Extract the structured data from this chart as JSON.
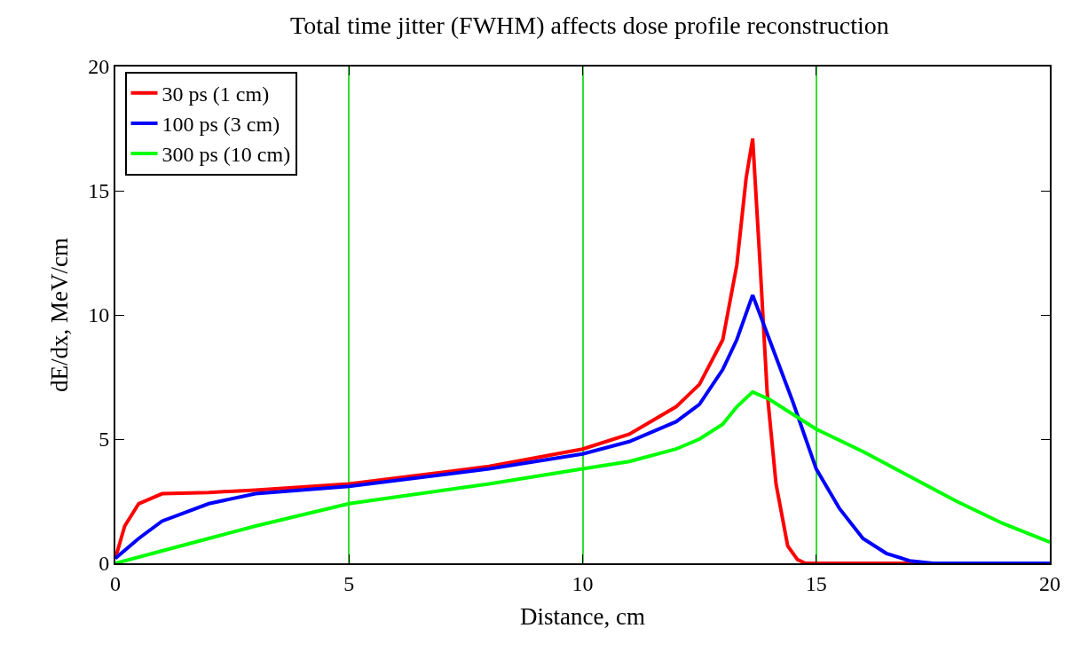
{
  "chart_data": {
    "type": "line",
    "title": "Total time jitter (FWHM) affects dose profile reconstruction",
    "xlabel": "Distance, cm",
    "ylabel": "dE/dx, MeV/cm",
    "xlim": [
      0,
      20
    ],
    "ylim": [
      0,
      20
    ],
    "xticks": [
      0,
      5,
      10,
      15,
      20
    ],
    "yticks": [
      0,
      5,
      10,
      15,
      20
    ],
    "grid": "x",
    "legend": "top left",
    "marker": "none",
    "line_style": "solid",
    "series": [
      {
        "name": "30 ps (1 cm)",
        "color": "#ff0000",
        "x": [
          0,
          0.2,
          0.5,
          1,
          2,
          3,
          5,
          8,
          10,
          11,
          12,
          12.5,
          13,
          13.3,
          13.5,
          13.64,
          13.8,
          13.95,
          14.14,
          14.39,
          14.6,
          14.77,
          16,
          20
        ],
        "values": [
          0.2,
          1.5,
          2.4,
          2.8,
          2.85,
          2.95,
          3.2,
          3.9,
          4.6,
          5.2,
          6.3,
          7.2,
          9,
          12,
          15.5,
          17.1,
          12,
          6.9,
          3.2,
          0.7,
          0.15,
          0,
          0,
          0
        ]
      },
      {
        "name": "100 ps (3 cm)",
        "color": "#0000ff",
        "x": [
          0,
          0.5,
          1,
          2,
          3,
          5,
          8,
          10,
          11,
          12,
          12.5,
          13,
          13.3,
          13.64,
          14,
          14.5,
          15,
          15.5,
          16,
          16.5,
          17,
          17.5,
          20
        ],
        "values": [
          0.2,
          1.0,
          1.7,
          2.4,
          2.8,
          3.1,
          3.8,
          4.4,
          4.9,
          5.7,
          6.4,
          7.8,
          9,
          10.8,
          9,
          6.5,
          3.8,
          2.2,
          1.0,
          0.4,
          0.1,
          0,
          0
        ]
      },
      {
        "name": "300 ps (10 cm)",
        "color": "#00ff00",
        "x": [
          0,
          1,
          2,
          3,
          5,
          8,
          10,
          11,
          12,
          12.5,
          13,
          13.3,
          13.64,
          14,
          15,
          16,
          17,
          18,
          19,
          20
        ],
        "values": [
          0,
          0.5,
          1.0,
          1.5,
          2.4,
          3.2,
          3.8,
          4.1,
          4.6,
          5.0,
          5.6,
          6.3,
          6.9,
          6.6,
          5.4,
          4.5,
          3.5,
          2.5,
          1.6,
          0.85
        ]
      }
    ]
  }
}
